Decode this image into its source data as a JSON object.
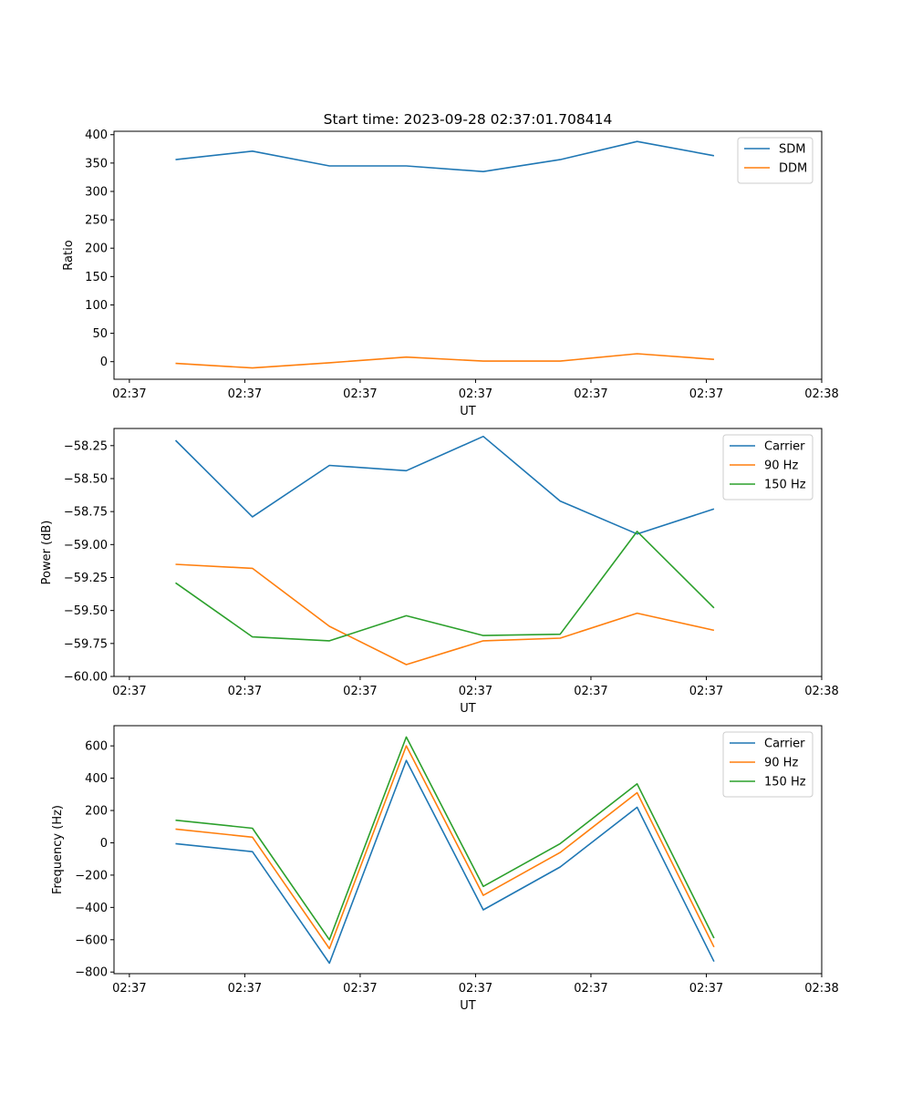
{
  "chart_data": [
    {
      "type": "line",
      "title": "Start time: 2023-09-28 02:37:01.708414",
      "xlabel": "UT",
      "ylabel": "Ratio",
      "x": [
        1,
        2,
        3,
        4,
        5,
        6,
        7,
        8
      ],
      "xlim": [
        0.2,
        9.4
      ],
      "x_ticks": [
        0.4,
        1.9,
        3.4,
        4.9,
        6.4,
        7.9,
        9.4
      ],
      "x_tick_labels": [
        "02:37",
        "02:37",
        "02:37",
        "02:37",
        "02:37",
        "02:37",
        "02:38"
      ],
      "ylim": [
        -31,
        406
      ],
      "y_ticks": [
        0,
        50,
        100,
        150,
        200,
        250,
        300,
        350,
        400
      ],
      "y_tick_labels": [
        "0",
        "50",
        "100",
        "150",
        "200",
        "250",
        "300",
        "350",
        "400"
      ],
      "legend_position": "top-right",
      "series": [
        {
          "name": "SDM",
          "color": "#1f77b4",
          "values": [
            356,
            371,
            345,
            345,
            335,
            356,
            388,
            363
          ]
        },
        {
          "name": "DDM",
          "color": "#ff7f0e",
          "values": [
            -3,
            -11,
            -2,
            8,
            1,
            1,
            14,
            4
          ]
        }
      ]
    },
    {
      "type": "line",
      "xlabel": "UT",
      "ylabel": "Power (dB)",
      "x": [
        1,
        2,
        3,
        4,
        5,
        6,
        7,
        8
      ],
      "xlim": [
        0.2,
        9.4
      ],
      "x_ticks": [
        0.4,
        1.9,
        3.4,
        4.9,
        6.4,
        7.9,
        9.4
      ],
      "x_tick_labels": [
        "02:37",
        "02:37",
        "02:37",
        "02:37",
        "02:37",
        "02:37",
        "02:38"
      ],
      "ylim": [
        -60.0,
        -58.12
      ],
      "y_ticks": [
        -60.0,
        -59.75,
        -59.5,
        -59.25,
        -59.0,
        -58.75,
        -58.5,
        -58.25
      ],
      "y_tick_labels": [
        "−60.00",
        "−59.75",
        "−59.50",
        "−59.25",
        "−59.00",
        "−58.75",
        "−58.50",
        "−58.25"
      ],
      "legend_position": "top-right",
      "series": [
        {
          "name": "Carrier",
          "color": "#1f77b4",
          "values": [
            -58.21,
            -58.79,
            -58.4,
            -58.44,
            -58.18,
            -58.67,
            -58.92,
            -58.73
          ]
        },
        {
          "name": "90 Hz",
          "color": "#ff7f0e",
          "values": [
            -59.15,
            -59.18,
            -59.62,
            -59.91,
            -59.73,
            -59.71,
            -59.52,
            -59.65
          ]
        },
        {
          "name": "150 Hz",
          "color": "#2ca02c",
          "values": [
            -59.29,
            -59.7,
            -59.73,
            -59.54,
            -59.69,
            -59.68,
            -58.9,
            -59.48
          ]
        }
      ]
    },
    {
      "type": "line",
      "xlabel": "UT",
      "ylabel": "Frequency (Hz)",
      "x": [
        1,
        2,
        3,
        4,
        5,
        6,
        7,
        8
      ],
      "xlim": [
        0.2,
        9.4
      ],
      "x_ticks": [
        0.4,
        1.9,
        3.4,
        4.9,
        6.4,
        7.9,
        9.4
      ],
      "x_tick_labels": [
        "02:37",
        "02:37",
        "02:37",
        "02:37",
        "02:37",
        "02:37",
        "02:38"
      ],
      "ylim": [
        -810,
        725
      ],
      "y_ticks": [
        -800,
        -600,
        -400,
        -200,
        0,
        200,
        400,
        600
      ],
      "y_tick_labels": [
        "−800",
        "−600",
        "−400",
        "−200",
        "0",
        "200",
        "400",
        "600"
      ],
      "legend_position": "top-right",
      "series": [
        {
          "name": "Carrier",
          "color": "#1f77b4",
          "values": [
            -5,
            -55,
            -745,
            510,
            -415,
            -150,
            220,
            -735
          ]
        },
        {
          "name": "90 Hz",
          "color": "#ff7f0e",
          "values": [
            85,
            35,
            -655,
            600,
            -325,
            -60,
            310,
            -645
          ]
        },
        {
          "name": "150 Hz",
          "color": "#2ca02c",
          "values": [
            140,
            90,
            -600,
            655,
            -270,
            -5,
            365,
            -590
          ]
        }
      ]
    }
  ]
}
